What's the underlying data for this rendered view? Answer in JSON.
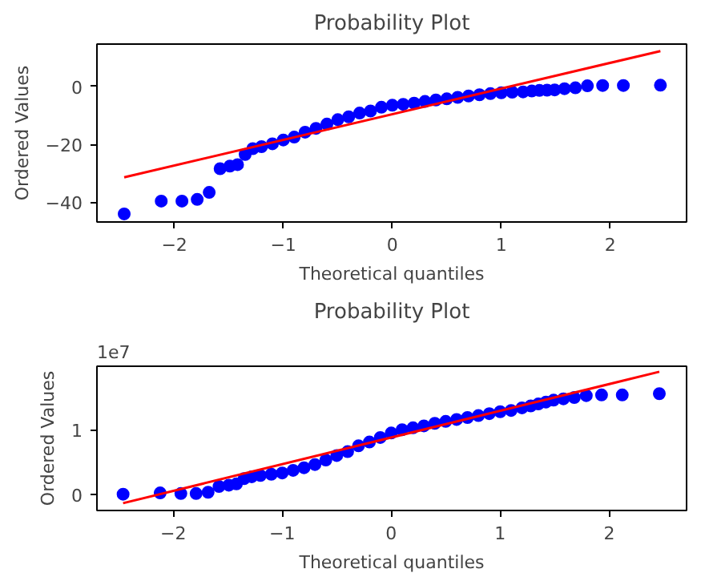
{
  "chart_data": [
    {
      "type": "scatter",
      "title": "Probability Plot",
      "xlabel": "Theoretical quantiles",
      "ylabel": "Ordered Values",
      "xlim": [
        -2.71,
        2.7
      ],
      "ylim": [
        -46.8,
        14.6
      ],
      "xticks": [
        -2,
        -1,
        0,
        1,
        2
      ],
      "yticks": [
        -40,
        -20,
        0
      ],
      "grid": false,
      "series": [
        {
          "marker": "circle",
          "color": "#0000ff",
          "x": [
            -2.46,
            -2.12,
            -1.93,
            -1.79,
            -1.68,
            -1.58,
            -1.49,
            -1.42,
            -1.35,
            -1.28,
            -1.2,
            -1.1,
            -1.0,
            -0.9,
            -0.8,
            -0.7,
            -0.6,
            -0.5,
            -0.4,
            -0.3,
            -0.2,
            -0.1,
            0,
            0.1,
            0.2,
            0.3,
            0.4,
            0.5,
            0.6,
            0.7,
            0.8,
            0.9,
            1.0,
            1.1,
            1.2,
            1.28,
            1.35,
            1.42,
            1.49,
            1.58,
            1.68,
            1.79,
            1.93,
            2.12,
            2.46
          ],
          "values": [
            -44,
            -39.6,
            -39.6,
            -39,
            -36.6,
            -28.4,
            -27.5,
            -27,
            -23.5,
            -21.5,
            -20.8,
            -19.8,
            -18.5,
            -17.5,
            -15.8,
            -14.5,
            -13,
            -11.5,
            -10.5,
            -9.2,
            -8.5,
            -7.2,
            -6.5,
            -6.2,
            -5.8,
            -5.2,
            -4.7,
            -4.3,
            -3.8,
            -3.3,
            -2.9,
            -2.5,
            -2.2,
            -2.0,
            -1.9,
            -1.6,
            -1.4,
            -1.3,
            -1.2,
            -0.8,
            -0.5,
            0.2,
            0.3,
            0.3,
            0.4
          ]
        },
        {
          "type": "line",
          "color": "#ff0000",
          "x": [
            -2.46,
            2.46
          ],
          "values": [
            -31.4,
            12.2
          ]
        }
      ]
    },
    {
      "type": "scatter",
      "title": "Probability Plot",
      "xlabel": "Theoretical quantiles",
      "ylabel": "Ordered Values",
      "annotations": [
        "1e7"
      ],
      "xlim": [
        -2.7,
        2.71
      ],
      "ylim": [
        -0.253,
        1.986
      ],
      "xticks": [
        -2,
        -1,
        0,
        1,
        2
      ],
      "yticks": [
        0,
        1
      ],
      "grid": false,
      "series": [
        {
          "marker": "circle",
          "color": "#0000ff",
          "x": [
            -2.46,
            -2.12,
            -1.93,
            -1.79,
            -1.68,
            -1.58,
            -1.49,
            -1.42,
            -1.35,
            -1.28,
            -1.2,
            -1.1,
            -1.0,
            -0.9,
            -0.8,
            -0.7,
            -0.6,
            -0.5,
            -0.4,
            -0.3,
            -0.2,
            -0.1,
            0,
            0.1,
            0.2,
            0.3,
            0.4,
            0.5,
            0.6,
            0.7,
            0.8,
            0.9,
            1.0,
            1.1,
            1.2,
            1.28,
            1.35,
            1.42,
            1.49,
            1.58,
            1.68,
            1.79,
            1.93,
            2.12,
            2.46
          ],
          "values": [
            0,
            0.02,
            0.01,
            0.01,
            0.03,
            0.12,
            0.14,
            0.16,
            0.24,
            0.27,
            0.29,
            0.31,
            0.33,
            0.37,
            0.41,
            0.46,
            0.53,
            0.6,
            0.66,
            0.75,
            0.81,
            0.88,
            0.95,
            1.0,
            1.03,
            1.06,
            1.1,
            1.13,
            1.16,
            1.19,
            1.22,
            1.25,
            1.28,
            1.3,
            1.34,
            1.37,
            1.4,
            1.43,
            1.46,
            1.48,
            1.5,
            1.53,
            1.54,
            1.54,
            1.56
          ]
        },
        {
          "type": "line",
          "color": "#ff0000",
          "x": [
            -2.46,
            2.46
          ],
          "values": [
            -0.14,
            1.9
          ]
        }
      ]
    }
  ]
}
